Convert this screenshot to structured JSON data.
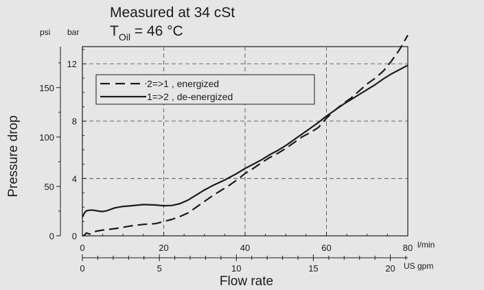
{
  "chart_data": {
    "type": "line",
    "title": "Measured at 34 cSt",
    "subtitle": {
      "prefix": "T",
      "subscript": "Oil",
      "suffix": " = 46 °C"
    },
    "ylabel": "Pressure drop",
    "xlabel": "Flow rate",
    "x_unit_main": "l/min",
    "x_unit_secondary": "US gpm",
    "y_unit_bar": "bar",
    "y_unit_psi": "psi",
    "xlim": [
      0,
      80
    ],
    "ylim_bar": [
      0,
      13.2
    ],
    "bar_ticks": [
      0,
      4,
      8,
      12
    ],
    "psi_ticks": [
      0,
      50,
      100,
      150
    ],
    "psi_per_bar": 14.5038,
    "x_ticks": [
      0,
      20,
      40,
      60,
      80
    ],
    "gpm_ticks": [
      0,
      5,
      10,
      15,
      20
    ],
    "lpm_per_gpm": 3.78541,
    "grid": true,
    "legend_position": "top-left",
    "colors": {
      "line": "#1a1a1a",
      "grid": "#555555",
      "background": "#e6e6e6"
    },
    "series": [
      {
        "name": "2=>1 ,   energized",
        "style": "dashed",
        "points": [
          [
            0,
            0
          ],
          [
            0.5,
            0.05
          ],
          [
            1,
            0.2
          ],
          [
            1.8,
            0.12
          ],
          [
            3,
            0.3
          ],
          [
            5,
            0.4
          ],
          [
            8,
            0.5
          ],
          [
            10,
            0.6
          ],
          [
            12,
            0.7
          ],
          [
            15,
            0.8
          ],
          [
            18,
            0.85
          ],
          [
            20,
            1.0
          ],
          [
            22,
            1.15
          ],
          [
            24,
            1.35
          ],
          [
            26,
            1.6
          ],
          [
            28,
            2.0
          ],
          [
            30,
            2.4
          ],
          [
            32,
            2.8
          ],
          [
            34,
            3.15
          ],
          [
            36,
            3.5
          ],
          [
            38,
            3.9
          ],
          [
            40,
            4.35
          ],
          [
            42,
            4.7
          ],
          [
            44,
            5.1
          ],
          [
            46,
            5.45
          ],
          [
            48,
            5.75
          ],
          [
            50,
            6.1
          ],
          [
            52,
            6.5
          ],
          [
            54,
            6.9
          ],
          [
            56,
            7.2
          ],
          [
            58,
            7.55
          ],
          [
            60,
            8.2
          ],
          [
            62,
            8.75
          ],
          [
            64,
            9.2
          ],
          [
            66,
            9.6
          ],
          [
            68,
            10.1
          ],
          [
            70,
            10.6
          ],
          [
            72,
            11.0
          ],
          [
            74,
            11.5
          ],
          [
            76,
            12.2
          ],
          [
            78,
            13.0
          ],
          [
            80,
            14.0
          ]
        ]
      },
      {
        "name": "1=>2 ,   de-energized",
        "style": "solid",
        "points": [
          [
            0,
            1.3
          ],
          [
            0.5,
            1.6
          ],
          [
            1,
            1.75
          ],
          [
            2,
            1.8
          ],
          [
            3,
            1.78
          ],
          [
            4,
            1.72
          ],
          [
            5,
            1.7
          ],
          [
            6,
            1.75
          ],
          [
            8,
            1.95
          ],
          [
            10,
            2.05
          ],
          [
            12,
            2.1
          ],
          [
            15,
            2.18
          ],
          [
            18,
            2.15
          ],
          [
            20,
            2.1
          ],
          [
            22,
            2.12
          ],
          [
            24,
            2.25
          ],
          [
            26,
            2.5
          ],
          [
            28,
            2.85
          ],
          [
            30,
            3.2
          ],
          [
            32,
            3.5
          ],
          [
            35,
            3.9
          ],
          [
            38,
            4.35
          ],
          [
            40,
            4.7
          ],
          [
            42,
            5.0
          ],
          [
            44,
            5.3
          ],
          [
            46,
            5.65
          ],
          [
            48,
            5.95
          ],
          [
            50,
            6.3
          ],
          [
            52,
            6.7
          ],
          [
            54,
            7.1
          ],
          [
            56,
            7.5
          ],
          [
            58,
            7.9
          ],
          [
            60,
            8.35
          ],
          [
            62,
            8.75
          ],
          [
            64,
            9.15
          ],
          [
            66,
            9.5
          ],
          [
            68,
            9.85
          ],
          [
            70,
            10.2
          ],
          [
            72,
            10.55
          ],
          [
            74,
            10.95
          ],
          [
            76,
            11.3
          ],
          [
            78,
            11.6
          ],
          [
            80,
            11.9
          ]
        ]
      }
    ]
  }
}
